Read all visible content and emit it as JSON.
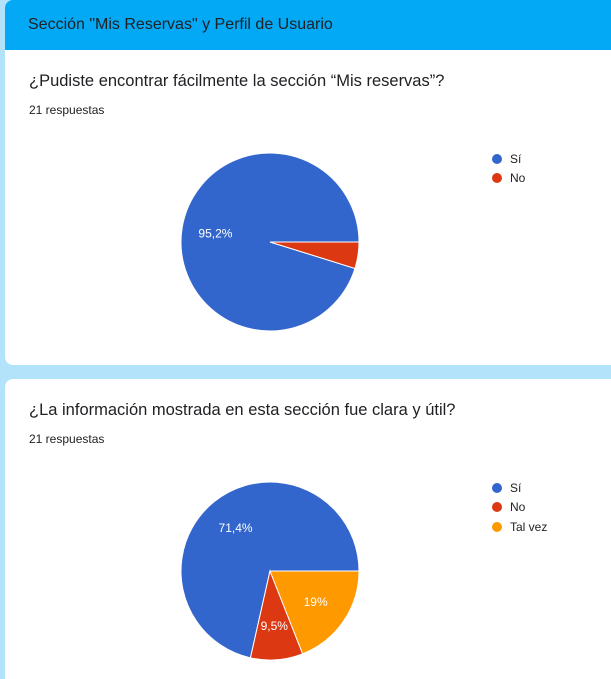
{
  "section": {
    "title": "Sección \"Mis Reservas\" y Perfil de Usuario"
  },
  "chart_data": [
    {
      "type": "pie",
      "title": "¿Pudiste encontrar fácilmente la sección “Mis reservas”?",
      "subtitle": "21 respuestas",
      "categories": [
        "Sí",
        "No"
      ],
      "values": [
        95.2,
        4.8
      ],
      "labels": [
        "95,2%",
        ""
      ],
      "colors": [
        "#3366cc",
        "#dc3912"
      ],
      "legend": "right"
    },
    {
      "type": "pie",
      "title": "¿La información mostrada en esta sección fue clara y útil?",
      "subtitle": "21 respuestas",
      "categories": [
        "Sí",
        "No",
        "Tal vez"
      ],
      "values": [
        71.4,
        9.5,
        19.0
      ],
      "labels": [
        "71,4%",
        "9,5%",
        "19%"
      ],
      "colors": [
        "#3366cc",
        "#dc3912",
        "#ff9900"
      ],
      "legend": "right"
    }
  ]
}
